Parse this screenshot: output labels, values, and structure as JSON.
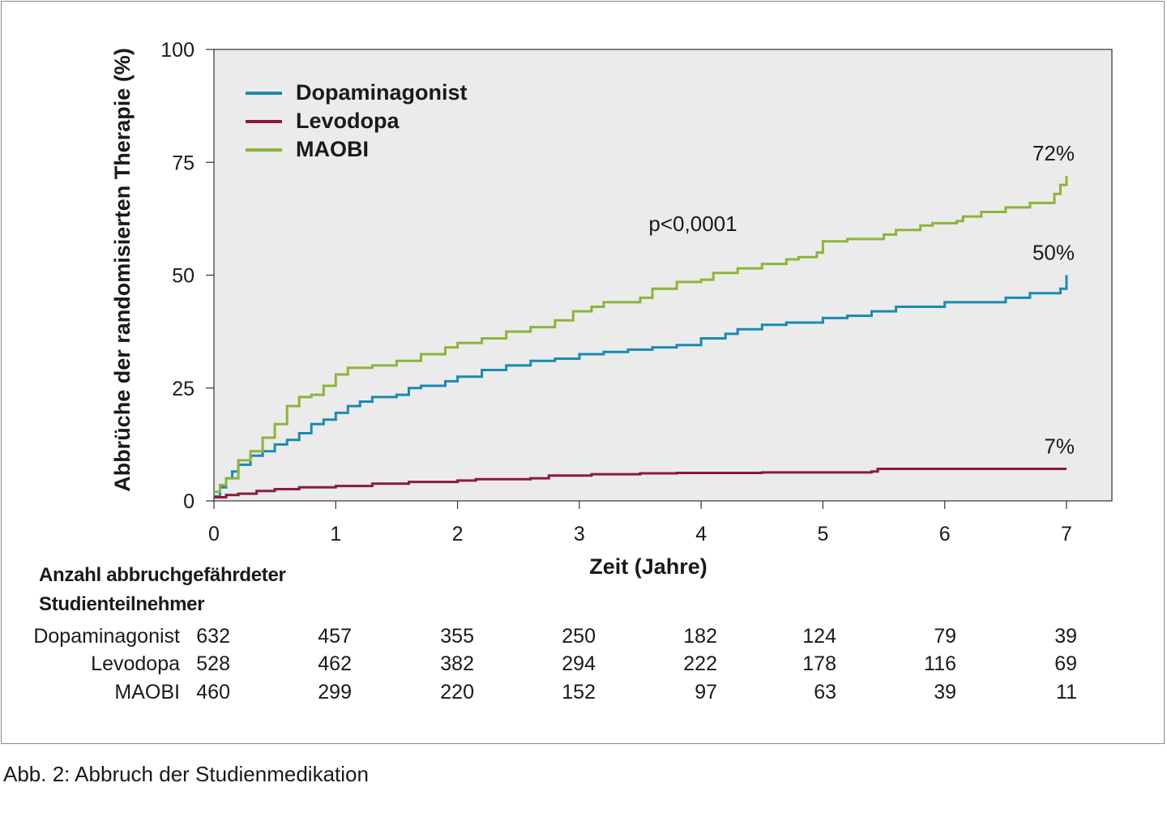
{
  "caption": "Abb. 2: Abbruch der Studienmedikation",
  "colors": {
    "dopaminagonist": "#1a8ab3",
    "levodopa": "#8c1a3c",
    "maobi": "#8db43a",
    "plot_background": "#ebebeb"
  },
  "chart_data": {
    "type": "line",
    "xlabel": "Zeit (Jahre)",
    "ylabel": "Abbrüche der randomisierten Therapie (%)",
    "xlim": [
      0,
      7
    ],
    "ylim": [
      0,
      100
    ],
    "xticks": [
      "0",
      "1",
      "2",
      "3",
      "4",
      "5",
      "6",
      "7"
    ],
    "yticks": [
      "0",
      "25",
      "50",
      "75",
      "100"
    ],
    "legend_position": "top-left",
    "annotation": "p<0,0001",
    "series": [
      {
        "name": "Dopaminagonist",
        "end_label": "50%",
        "points": [
          [
            0,
            1
          ],
          [
            0.05,
            3
          ],
          [
            0.1,
            5
          ],
          [
            0.15,
            6.5
          ],
          [
            0.2,
            8
          ],
          [
            0.3,
            10
          ],
          [
            0.4,
            11
          ],
          [
            0.5,
            12.5
          ],
          [
            0.6,
            13.5
          ],
          [
            0.7,
            15
          ],
          [
            0.8,
            17
          ],
          [
            0.9,
            18
          ],
          [
            1.0,
            19.5
          ],
          [
            1.1,
            21
          ],
          [
            1.2,
            22
          ],
          [
            1.3,
            23
          ],
          [
            1.5,
            23.5
          ],
          [
            1.6,
            25
          ],
          [
            1.7,
            25.5
          ],
          [
            1.9,
            26.5
          ],
          [
            2.0,
            27.5
          ],
          [
            2.2,
            29
          ],
          [
            2.4,
            30
          ],
          [
            2.6,
            31
          ],
          [
            2.8,
            31.5
          ],
          [
            3.0,
            32.5
          ],
          [
            3.2,
            33
          ],
          [
            3.4,
            33.5
          ],
          [
            3.6,
            34
          ],
          [
            3.8,
            34.5
          ],
          [
            4.0,
            36
          ],
          [
            4.2,
            37
          ],
          [
            4.3,
            38
          ],
          [
            4.5,
            39
          ],
          [
            4.7,
            39.5
          ],
          [
            5.0,
            40.5
          ],
          [
            5.2,
            41
          ],
          [
            5.4,
            42
          ],
          [
            5.6,
            43
          ],
          [
            6.0,
            44
          ],
          [
            6.5,
            45
          ],
          [
            6.7,
            46
          ],
          [
            6.95,
            47
          ],
          [
            7.0,
            50
          ]
        ]
      },
      {
        "name": "Levodopa",
        "end_label": "7%",
        "points": [
          [
            0,
            0.8
          ],
          [
            0.1,
            1.3
          ],
          [
            0.2,
            1.6
          ],
          [
            0.35,
            2.2
          ],
          [
            0.5,
            2.6
          ],
          [
            0.7,
            3
          ],
          [
            1.0,
            3.3
          ],
          [
            1.3,
            3.8
          ],
          [
            1.6,
            4.2
          ],
          [
            2.0,
            4.5
          ],
          [
            2.15,
            4.8
          ],
          [
            2.6,
            5
          ],
          [
            2.75,
            5.6
          ],
          [
            3.1,
            5.9
          ],
          [
            3.5,
            6.1
          ],
          [
            3.8,
            6.2
          ],
          [
            4.5,
            6.3
          ],
          [
            5.4,
            6.5
          ],
          [
            5.45,
            7.1
          ],
          [
            7.0,
            7.1
          ]
        ]
      },
      {
        "name": "MAOBI",
        "end_label": "72%",
        "points": [
          [
            0,
            2
          ],
          [
            0.05,
            3.5
          ],
          [
            0.1,
            5
          ],
          [
            0.2,
            9
          ],
          [
            0.3,
            11
          ],
          [
            0.4,
            14
          ],
          [
            0.5,
            17
          ],
          [
            0.6,
            21
          ],
          [
            0.7,
            23
          ],
          [
            0.8,
            23.5
          ],
          [
            0.9,
            25.5
          ],
          [
            1.0,
            28
          ],
          [
            1.1,
            29.5
          ],
          [
            1.3,
            30
          ],
          [
            1.5,
            31
          ],
          [
            1.7,
            32.5
          ],
          [
            1.9,
            34
          ],
          [
            2.0,
            35
          ],
          [
            2.2,
            36
          ],
          [
            2.4,
            37.5
          ],
          [
            2.6,
            38.5
          ],
          [
            2.8,
            40
          ],
          [
            2.95,
            42
          ],
          [
            3.1,
            43
          ],
          [
            3.2,
            44
          ],
          [
            3.5,
            45
          ],
          [
            3.6,
            47
          ],
          [
            3.8,
            48.5
          ],
          [
            4.0,
            49
          ],
          [
            4.1,
            50.5
          ],
          [
            4.3,
            51.5
          ],
          [
            4.5,
            52.5
          ],
          [
            4.7,
            53.5
          ],
          [
            4.8,
            54
          ],
          [
            4.95,
            55
          ],
          [
            5.0,
            57.5
          ],
          [
            5.2,
            58
          ],
          [
            5.4,
            58
          ],
          [
            5.5,
            59
          ],
          [
            5.6,
            60
          ],
          [
            5.7,
            60
          ],
          [
            5.8,
            61
          ],
          [
            5.9,
            61.5
          ],
          [
            6.0,
            61.5
          ],
          [
            6.1,
            62
          ],
          [
            6.15,
            63
          ],
          [
            6.3,
            64
          ],
          [
            6.5,
            65
          ],
          [
            6.6,
            65
          ],
          [
            6.7,
            66
          ],
          [
            6.9,
            68
          ],
          [
            6.95,
            70
          ],
          [
            7.0,
            72
          ]
        ]
      }
    ],
    "risk_table": {
      "title_line1": "Anzahl abbruchgefährdeter",
      "title_line2": "Studienteilnehmer",
      "rows": [
        {
          "group": "Dopaminagonist",
          "values": [
            "632",
            "457",
            "355",
            "250",
            "182",
            "124",
            "79",
            "39"
          ]
        },
        {
          "group": "Levodopa",
          "values": [
            "528",
            "462",
            "382",
            "294",
            "222",
            "178",
            "116",
            "69"
          ]
        },
        {
          "group": "MAOBI",
          "values": [
            "460",
            "299",
            "220",
            "152",
            "97",
            "63",
            "39",
            "11"
          ]
        }
      ]
    }
  }
}
